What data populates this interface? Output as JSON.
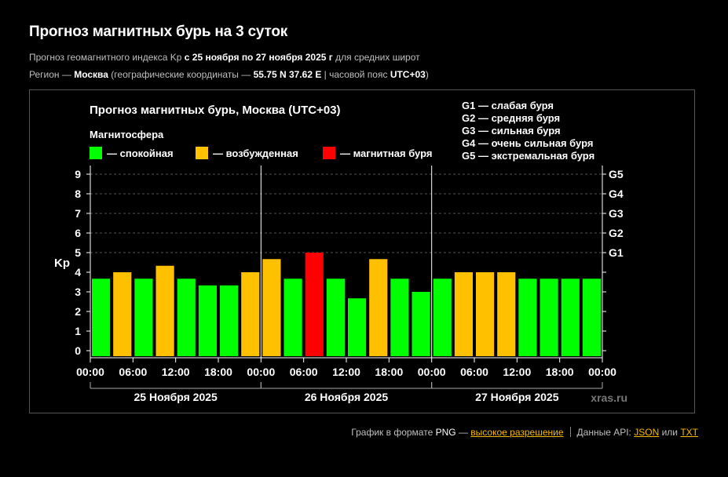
{
  "page": {
    "title": "Прогноз магнитных бурь на 3 суток",
    "subtitle": {
      "prefix": "Прогноз геомагнитного индекса Kp ",
      "dates": "с 25 ноября по 27 ноября 2025 г",
      "suffix": " для средних широт"
    },
    "region": {
      "prefix": "Регион — ",
      "city": "Москва",
      "middle": " (географические координаты — ",
      "coords": "55.75 N 37.62 E",
      "tz_prefix": " | часовой пояс ",
      "tz": "UTC+03",
      "suffix": ")"
    }
  },
  "footer": {
    "png_prefix": "График в формате ",
    "png": "PNG",
    "png_dash": " — ",
    "hires_link": "высокое разрешение",
    "api_label": "Данные API: ",
    "json_link": "JSON",
    "or": " или ",
    "txt_link": "TXT"
  },
  "chart_data": {
    "type": "bar",
    "title": "Прогноз магнитных бурь, Москва (UTC+03)",
    "ylabel": "Kp",
    "ylim": [
      0,
      9
    ],
    "yticks": [
      "0",
      "1",
      "2",
      "3",
      "4",
      "5",
      "6",
      "7",
      "8",
      "9"
    ],
    "right_ticks": [
      {
        "value": 5,
        "label": "G1"
      },
      {
        "value": 6,
        "label": "G2"
      },
      {
        "value": 7,
        "label": "G3"
      },
      {
        "value": 8,
        "label": "G4"
      },
      {
        "value": 9,
        "label": "G5"
      }
    ],
    "grid": "horizontal dashed",
    "legend_title": "Магнитосфера",
    "legend": [
      {
        "label": "— спокойная",
        "color": "#00ff00"
      },
      {
        "label": "— возбужденная",
        "color": "#ffc000"
      },
      {
        "label": "— магнитная буря",
        "color": "#ff0000"
      }
    ],
    "g_scale": [
      "G1 — слабая буря",
      "G2 — средняя буря",
      "G3 — сильная буря",
      "G4 — очень сильная буря",
      "G5 — экстремальная буря"
    ],
    "x_tick_labels": [
      "00:00",
      "06:00",
      "12:00",
      "18:00",
      "00:00",
      "06:00",
      "12:00",
      "18:00",
      "00:00",
      "06:00",
      "12:00",
      "18:00",
      "00:00"
    ],
    "days": [
      "25 Ноября 2025",
      "26 Ноября 2025",
      "27 Ноября 2025"
    ],
    "values": [
      3.67,
      4.0,
      3.67,
      4.33,
      3.67,
      3.33,
      3.33,
      4.0,
      4.67,
      3.67,
      5.0,
      3.67,
      2.67,
      4.67,
      3.67,
      3.0,
      3.67,
      4.0,
      4.0,
      4.0,
      3.67,
      3.67,
      3.67,
      3.67
    ],
    "levels": [
      "quiet",
      "active",
      "quiet",
      "active",
      "quiet",
      "quiet",
      "quiet",
      "active",
      "active",
      "quiet",
      "storm",
      "quiet",
      "quiet",
      "active",
      "quiet",
      "quiet",
      "quiet",
      "active",
      "active",
      "active",
      "quiet",
      "quiet",
      "quiet",
      "quiet"
    ],
    "colors": {
      "quiet": "#00ff00",
      "active": "#ffc000",
      "storm": "#ff0000"
    },
    "watermark": "xras.ru"
  }
}
